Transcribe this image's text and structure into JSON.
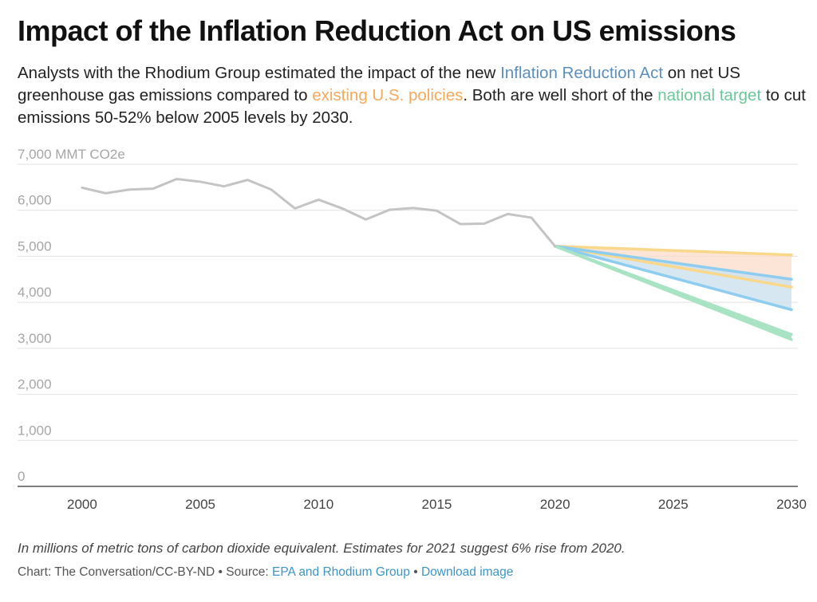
{
  "title": "Impact of the Inflation Reduction Act on US emissions",
  "subtitle": {
    "part1": "Analysts with the Rhodium Group estimated the impact of the new ",
    "ira": "Inflation Reduction Act",
    "part2": " on net US greenhouse gas emissions compared to ",
    "existing": "existing U.S. policies",
    "part3": ". Both are well short of the ",
    "target": "national target",
    "part4": " to cut emissions 50-52% below 2005 levels by 2030."
  },
  "colors": {
    "historical": "#c4c4c4",
    "ira": "#8ecdf0",
    "ira_fill": "#cfe3ef",
    "existing": "#f9d88c",
    "existing_fill": "#fbdcc8",
    "target": "#a8e3c4",
    "grid": "#e2e2e2",
    "ira_text": "#5b8fbd",
    "existing_text": "#f5a95c",
    "target_text": "#6cc79a"
  },
  "chart_data": {
    "type": "line",
    "ylabel": "MMT CO2e",
    "ylim": [
      0,
      7000
    ],
    "xlim": [
      1997,
      2030
    ],
    "y_ticks": [
      {
        "value": 0,
        "label": "0"
      },
      {
        "value": 1000,
        "label": "1,000"
      },
      {
        "value": 2000,
        "label": "2,000"
      },
      {
        "value": 3000,
        "label": "3,000"
      },
      {
        "value": 4000,
        "label": "4,000"
      },
      {
        "value": 5000,
        "label": "5,000"
      },
      {
        "value": 6000,
        "label": "6,000"
      },
      {
        "value": 7000,
        "label": "7,000 MMT CO2e"
      }
    ],
    "x_ticks": [
      {
        "value": 2000,
        "label": "2000"
      },
      {
        "value": 2005,
        "label": "2005"
      },
      {
        "value": 2010,
        "label": "2010"
      },
      {
        "value": 2015,
        "label": "2015"
      },
      {
        "value": 2020,
        "label": "2020"
      },
      {
        "value": 2025,
        "label": "2025"
      },
      {
        "value": 2030,
        "label": "2030"
      }
    ],
    "historical": {
      "x": [
        2000,
        2001,
        2002,
        2003,
        2004,
        2005,
        2006,
        2007,
        2008,
        2009,
        2010,
        2011,
        2012,
        2013,
        2014,
        2015,
        2016,
        2017,
        2018,
        2019,
        2020
      ],
      "y": [
        6490,
        6370,
        6450,
        6470,
        6680,
        6620,
        6520,
        6660,
        6450,
        6040,
        6230,
        6040,
        5800,
        6010,
        6050,
        5990,
        5700,
        5710,
        5920,
        5840,
        5220
      ]
    },
    "existing_policies": {
      "x": [
        2020,
        2030
      ],
      "upper": [
        5220,
        5030
      ],
      "lower": [
        5220,
        4330
      ]
    },
    "inflation_reduction_act": {
      "x": [
        2020,
        2030
      ],
      "upper": [
        5220,
        4500
      ],
      "lower": [
        5220,
        3840
      ]
    },
    "national_target": {
      "x": [
        2020,
        2030
      ],
      "upper": [
        5220,
        3300
      ],
      "lower": [
        5220,
        3190
      ]
    },
    "grid": true,
    "legend": "none"
  },
  "note": "In millions of metric tons of carbon dioxide equivalent. Estimates for 2021 suggest 6% rise from 2020.",
  "credit": {
    "prefix": "Chart: The Conversation/CC-BY-ND • Source: ",
    "source": "EPA and Rhodium Group",
    "sep": " • ",
    "download": "Download image"
  }
}
